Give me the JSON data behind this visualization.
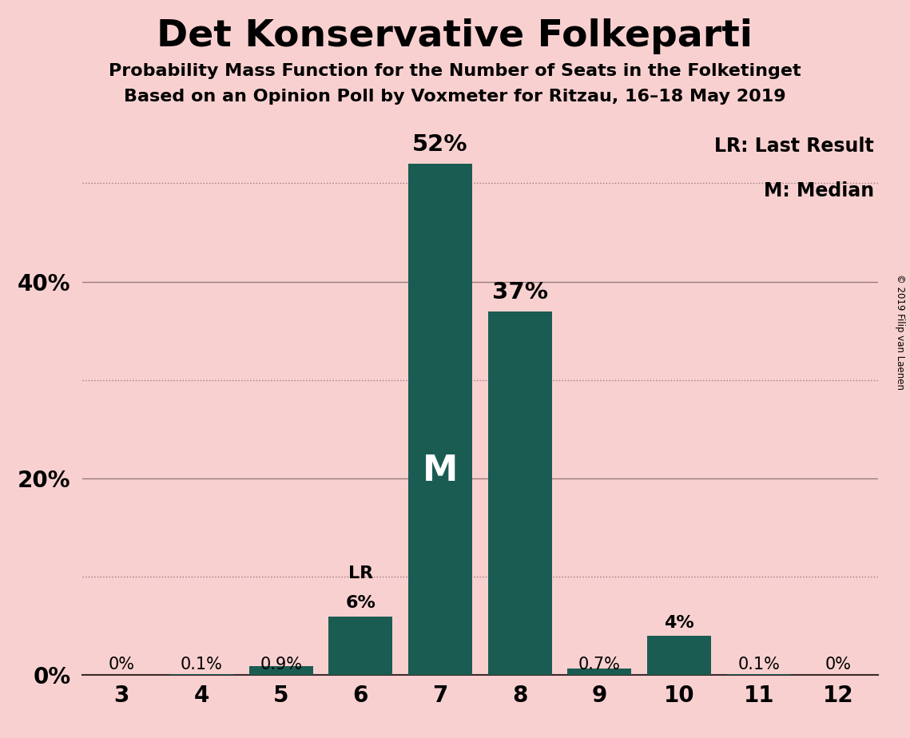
{
  "title": "Det Konservative Folkeparti",
  "subtitle1": "Probability Mass Function for the Number of Seats in the Folketinget",
  "subtitle2": "Based on an Opinion Poll by Voxmeter for Ritzau, 16–18 May 2019",
  "copyright": "© 2019 Filip van Laenen",
  "categories": [
    3,
    4,
    5,
    6,
    7,
    8,
    9,
    10,
    11,
    12
  ],
  "values": [
    0.0,
    0.1,
    0.9,
    6.0,
    52.0,
    37.0,
    0.7,
    4.0,
    0.1,
    0.0
  ],
  "bar_labels": [
    "0%",
    "0.1%",
    "0.9%",
    "6%",
    "52%",
    "37%",
    "0.7%",
    "4%",
    "0.1%",
    "0%"
  ],
  "bar_color": "#1a5c52",
  "background_color": "#f9d0d0",
  "title_fontsize": 34,
  "subtitle_fontsize": 16,
  "label_fontsize": 16,
  "tick_fontsize": 20,
  "ytick_labels": [
    "0%",
    "20%",
    "40%"
  ],
  "ytick_values": [
    0,
    20,
    40
  ],
  "grid_solid": [
    20,
    40
  ],
  "grid_dotted": [
    10,
    30,
    50
  ],
  "ylim": [
    0,
    57
  ],
  "median_bar": 7,
  "lr_bar": 6,
  "legend_text1": "LR: Last Result",
  "legend_text2": "M: Median",
  "median_label": "M",
  "lr_label": "LR",
  "text_color_dark": "#000000",
  "text_color_white": "#ffffff",
  "grid_color": "#3a2a2a",
  "grid_alpha": 0.5
}
